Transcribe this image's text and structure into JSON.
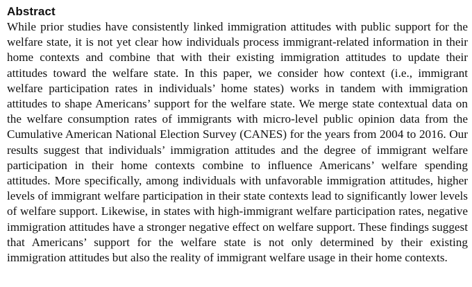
{
  "abstract": {
    "heading": "Abstract",
    "body": "While prior studies have consistently linked immigration attitudes with public support for the welfare state, it is not yet clear how individuals process immigrant-related information in their home contexts and combine that with their existing immigration attitudes to update their attitudes toward the welfare state. In this paper, we consider how context (i.e., immigrant welfare participation rates in individuals’ home states) works in tandem with immigration attitudes to shape Americans’ support for the welfare state. We merge state contextual data on the welfare consumption rates of immigrants with micro-level public opinion data from the Cumulative American National Election Survey (CANES) for the years from 2004 to 2016. Our results suggest that individuals’ immigration attitudes and the degree of immigrant welfare participation in their home contexts combine to influence Americans’ welfare spending attitudes. More specifically, among individuals with unfavorable immigration attitudes, higher levels of immigrant welfare participation in their state contexts lead to significantly lower levels of welfare support. Likewise, in states with high-immigrant welfare participation rates, negative immigration attitudes have a stronger negative effect on welfare support. These findings suggest that Americans’ support for the welfare state is not only determined by their existing immigration attitudes but also the reality of immigrant welfare usage in their home contexts."
  }
}
